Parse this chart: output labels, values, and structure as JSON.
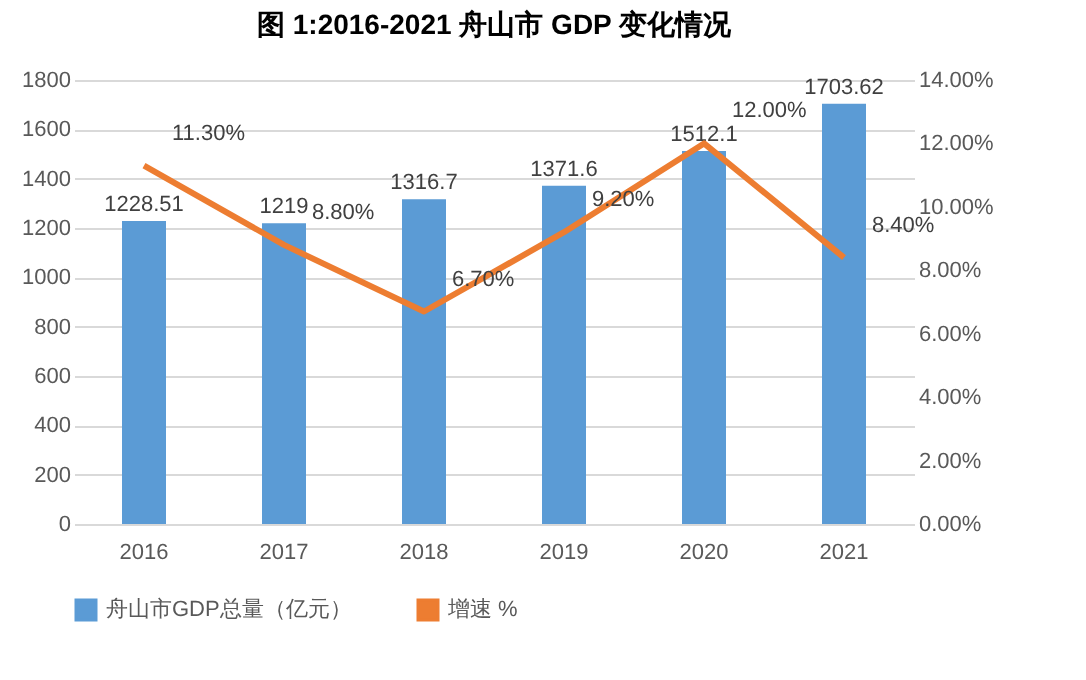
{
  "chart_data": {
    "type": "bar",
    "title": "图 1:2016-2021 舟山市 GDP 变化情况",
    "categories": [
      "2016",
      "2017",
      "2018",
      "2019",
      "2020",
      "2021"
    ],
    "series": [
      {
        "name": "舟山市GDP总量（亿元）",
        "color": "#5b9bd5",
        "values": [
          1228.51,
          1219,
          1316.7,
          1371.6,
          1512.1,
          1703.62
        ],
        "value_labels": [
          "1228.51",
          "1219",
          "1316.7",
          "1371.6",
          "1512.1",
          "1703.62"
        ]
      },
      {
        "name": "增速 %",
        "type": "line",
        "axis": "y2",
        "color": "#ed7d31",
        "values": [
          11.3,
          8.8,
          6.7,
          9.2,
          12.0,
          8.4
        ],
        "value_labels": [
          "11.30%",
          "8.80%",
          "6.70%",
          "9.20%",
          "12.00%",
          "8.40%"
        ]
      }
    ],
    "ylim": [
      0,
      1800
    ],
    "yticks": [
      0,
      200,
      400,
      600,
      800,
      1000,
      1200,
      1400,
      1600,
      1800
    ],
    "y2lim": [
      0,
      14
    ],
    "y2ticks": [
      {
        "value": 0,
        "label": "0.00%"
      },
      {
        "value": 2,
        "label": "2.00%"
      },
      {
        "value": 4,
        "label": "4.00%"
      },
      {
        "value": 6,
        "label": "6.00%"
      },
      {
        "value": 8,
        "label": "8.00%"
      },
      {
        "value": 10,
        "label": "10.00%"
      },
      {
        "value": 12,
        "label": "12.00%"
      },
      {
        "value": 14,
        "label": "14.00%"
      }
    ],
    "grid": "y",
    "legend": "bottom",
    "marker": "none",
    "line_style": "solid"
  }
}
